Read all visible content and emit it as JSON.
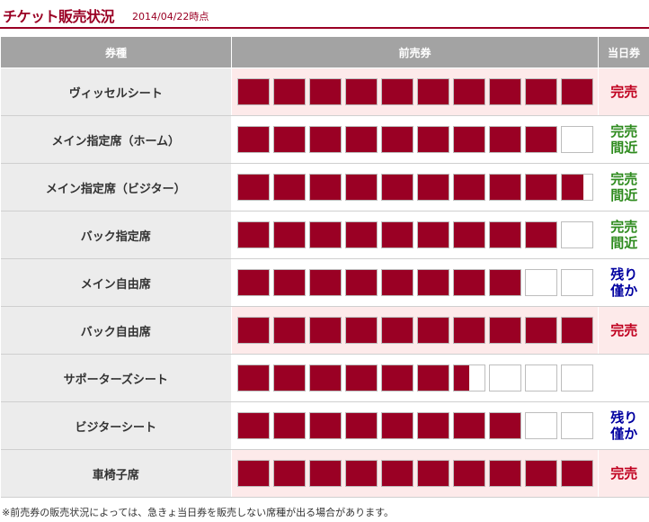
{
  "header": {
    "title": "チケット販売状況",
    "date": "2014/04/22時点"
  },
  "table": {
    "columns": [
      "券種",
      "前売券",
      "当日券"
    ],
    "rows": [
      {
        "name": "ヴィッセルシート",
        "advance_level": 1.0,
        "same_day": "完売",
        "status": "sold"
      },
      {
        "name": "メイン指定席（ホーム）",
        "advance_level": 0.9,
        "same_day": "完売\n間近",
        "status": "near"
      },
      {
        "name": "メイン指定席（ビジター）",
        "advance_level": 0.97,
        "same_day": "完売\n間近",
        "status": "near"
      },
      {
        "name": "バック指定席",
        "advance_level": 0.9,
        "same_day": "完売\n間近",
        "status": "near"
      },
      {
        "name": "メイン自由席",
        "advance_level": 0.8,
        "same_day": "残り\n僅か",
        "status": "few"
      },
      {
        "name": "バック自由席",
        "advance_level": 1.0,
        "same_day": "完売",
        "status": "sold"
      },
      {
        "name": "サポーターズシート",
        "advance_level": 0.65,
        "same_day": "",
        "status": "none"
      },
      {
        "name": "ビジターシート",
        "advance_level": 0.8,
        "same_day": "残り\n僅か",
        "status": "few"
      },
      {
        "name": "車椅子席",
        "advance_level": 1.0,
        "same_day": "完売",
        "status": "sold"
      }
    ]
  },
  "note": "※前売券の販売状況によっては、急きょ当日券を販売しない席種が出る場合があります。",
  "colors": {
    "accent": "#9a0024",
    "sold": "#c0001f",
    "near": "#2e8b1e",
    "few": "#0000a0"
  }
}
